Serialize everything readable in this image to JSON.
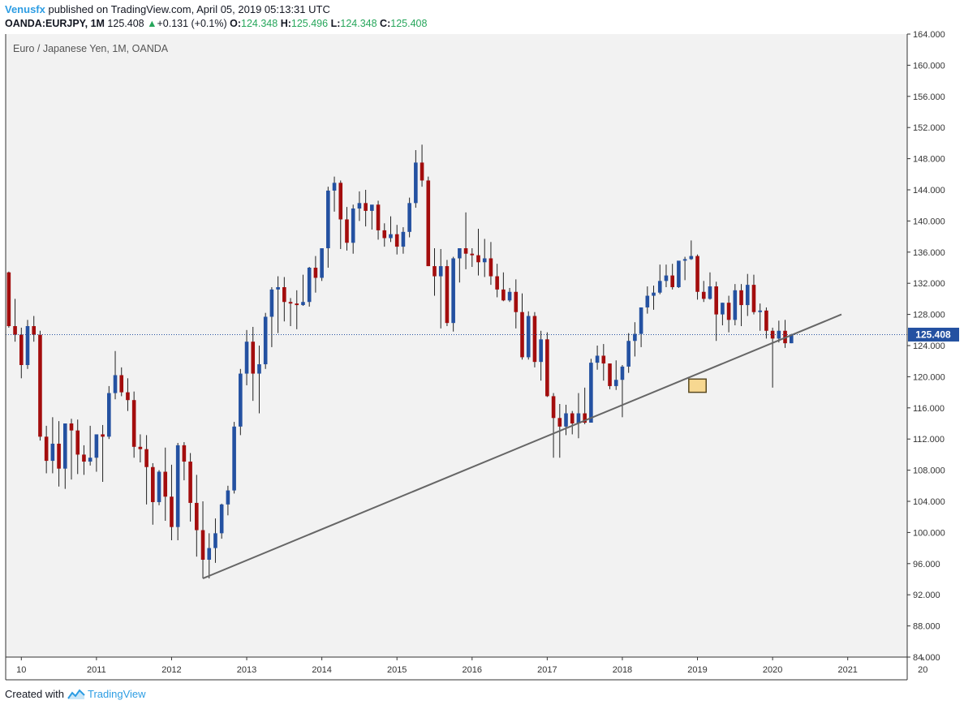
{
  "header": {
    "author": "Venusfx",
    "published_text": " published on TradingView.com, April 05, 2019 05:13:31 UTC"
  },
  "ticker": {
    "symbol": "OANDA:EURJPY, 1M",
    "last": "125.408",
    "change": "+0.131 (+0.1%)",
    "open_label": "O:",
    "open": "124.348",
    "high_label": "H:",
    "high": "125.496",
    "low_label": "L:",
    "low": "124.348",
    "close_label": "C:",
    "close": "125.408"
  },
  "footer": {
    "created_with": "Created with",
    "brand": "TradingView"
  },
  "colors": {
    "up": "#2451a1",
    "down": "#a30d0d",
    "background": "#f2f2f2",
    "trendline": "#666666",
    "price_line": "#2451a1",
    "highlight_fill": "#f7d891",
    "highlight_border": "#5a4a20"
  },
  "chart_data": {
    "type": "candlestick",
    "title": "Euro / Japanese Yen, 1M, OANDA",
    "interval": "1M",
    "ylim": [
      84,
      164
    ],
    "xlim": [
      "2009-11",
      "2021-11"
    ],
    "y_ticks": [
      "164.000",
      "160.000",
      "156.000",
      "152.000",
      "148.000",
      "144.000",
      "140.000",
      "136.000",
      "132.000",
      "128.000",
      "124.000",
      "120.000",
      "116.000",
      "112.000",
      "108.000",
      "104.000",
      "100.000",
      "96.000",
      "92.000",
      "88.000",
      "84.000"
    ],
    "x_ticks": [
      {
        "label": "10",
        "date": "2010-01"
      },
      {
        "label": "2011",
        "date": "2011-01"
      },
      {
        "label": "2012",
        "date": "2012-01"
      },
      {
        "label": "2013",
        "date": "2013-01"
      },
      {
        "label": "2014",
        "date": "2014-01"
      },
      {
        "label": "2015",
        "date": "2015-01"
      },
      {
        "label": "2016",
        "date": "2016-01"
      },
      {
        "label": "2017",
        "date": "2017-01"
      },
      {
        "label": "2018",
        "date": "2018-01"
      },
      {
        "label": "2019",
        "date": "2019-01"
      },
      {
        "label": "2020",
        "date": "2020-01"
      },
      {
        "label": "2021",
        "date": "2021-01"
      },
      {
        "label": "20",
        "date": "2022-01"
      }
    ],
    "last_price": 125.408,
    "last_price_label": "125.408",
    "trendline": [
      {
        "date": "2012-06",
        "price": 94.1
      },
      {
        "date": "2020-12",
        "price": 128.0
      }
    ],
    "highlight": {
      "date_from": "2018-12",
      "date_to": "2019-02",
      "price_low": 118.0,
      "price_high": 119.7
    },
    "candles_start": "2009-11",
    "candles": [
      [
        133.4,
        133.5,
        126.3,
        126.5
      ],
      [
        126.5,
        130.0,
        124.5,
        125.4
      ],
      [
        125.4,
        126.3,
        119.8,
        121.5
      ],
      [
        121.5,
        127.3,
        121.0,
        126.5
      ],
      [
        126.5,
        127.8,
        124.5,
        125.4
      ],
      [
        125.4,
        125.9,
        111.8,
        112.3
      ],
      [
        112.3,
        113.7,
        107.6,
        109.2
      ],
      [
        109.2,
        114.8,
        107.6,
        111.4
      ],
      [
        111.4,
        114.3,
        105.9,
        108.2
      ],
      [
        108.2,
        113.7,
        105.6,
        114.0
      ],
      [
        114.0,
        114.6,
        106.8,
        113.1
      ],
      [
        113.1,
        114.5,
        107.5,
        110.0
      ],
      [
        110.0,
        111.2,
        107.4,
        109.1
      ],
      [
        109.1,
        113.7,
        108.6,
        109.6
      ],
      [
        109.6,
        112.5,
        107.8,
        112.6
      ],
      [
        112.6,
        113.8,
        106.5,
        112.3
      ],
      [
        112.3,
        118.8,
        112.0,
        117.9
      ],
      [
        117.9,
        123.3,
        117.1,
        120.2
      ],
      [
        120.2,
        121.2,
        117.5,
        118.0
      ],
      [
        118.0,
        119.8,
        115.6,
        117.0
      ],
      [
        117.0,
        118.1,
        109.6,
        111.0
      ],
      [
        111.0,
        112.6,
        109.0,
        110.7
      ],
      [
        110.7,
        112.5,
        103.6,
        108.4
      ],
      [
        108.4,
        108.9,
        101.0,
        103.9
      ],
      [
        103.9,
        108.0,
        103.5,
        107.8
      ],
      [
        107.8,
        110.9,
        101.5,
        104.6
      ],
      [
        104.6,
        108.7,
        99.0,
        100.7
      ],
      [
        100.7,
        111.5,
        99.0,
        111.2
      ],
      [
        111.2,
        111.6,
        106.7,
        109.1
      ],
      [
        109.1,
        110.2,
        101.4,
        103.8
      ],
      [
        103.8,
        107.4,
        96.9,
        100.3
      ],
      [
        100.3,
        104.0,
        94.1,
        96.5
      ],
      [
        96.5,
        99.9,
        94.1,
        98.0
      ],
      [
        98.0,
        101.8,
        96.1,
        99.9
      ],
      [
        99.9,
        103.7,
        99.2,
        103.6
      ],
      [
        103.6,
        106.0,
        102.2,
        105.4
      ],
      [
        105.4,
        114.2,
        105.0,
        113.6
      ],
      [
        113.6,
        121.0,
        112.5,
        120.4
      ],
      [
        120.4,
        126.0,
        118.9,
        124.5
      ],
      [
        124.5,
        126.4,
        116.9,
        120.4
      ],
      [
        120.4,
        124.0,
        115.3,
        121.6
      ],
      [
        121.6,
        128.2,
        121.0,
        127.7
      ],
      [
        127.7,
        131.5,
        123.8,
        131.2
      ],
      [
        131.2,
        132.9,
        125.6,
        131.5
      ],
      [
        131.5,
        132.8,
        127.1,
        129.6
      ],
      [
        129.6,
        130.1,
        126.5,
        129.4
      ],
      [
        129.4,
        131.1,
        126.1,
        129.2
      ],
      [
        129.2,
        133.1,
        129.1,
        129.6
      ],
      [
        129.6,
        134.1,
        129.0,
        134.0
      ],
      [
        134.0,
        135.5,
        130.8,
        132.7
      ],
      [
        132.7,
        136.3,
        132.3,
        136.5
      ],
      [
        136.5,
        144.4,
        134.0,
        143.9
      ],
      [
        143.9,
        145.7,
        141.2,
        144.9
      ],
      [
        144.9,
        145.2,
        136.4,
        140.2
      ],
      [
        140.2,
        141.8,
        136.2,
        137.2
      ],
      [
        137.2,
        142.1,
        135.8,
        141.6
      ],
      [
        141.6,
        143.8,
        140.0,
        142.3
      ],
      [
        142.3,
        144.0,
        139.3,
        141.3
      ],
      [
        141.3,
        141.6,
        138.9,
        142.1
      ],
      [
        142.1,
        142.6,
        137.6,
        138.8
      ],
      [
        138.8,
        139.7,
        136.7,
        137.8
      ],
      [
        137.8,
        140.6,
        137.3,
        138.3
      ],
      [
        138.3,
        139.5,
        135.7,
        136.7
      ],
      [
        136.7,
        139.2,
        135.8,
        138.6
      ],
      [
        138.6,
        143.0,
        137.9,
        142.3
      ],
      [
        142.3,
        149.1,
        141.7,
        147.5
      ],
      [
        147.5,
        149.8,
        144.4,
        145.2
      ],
      [
        145.2,
        145.7,
        134.2,
        134.2
      ],
      [
        134.2,
        136.5,
        130.4,
        132.9
      ],
      [
        132.9,
        136.4,
        126.2,
        134.2
      ],
      [
        134.2,
        135.0,
        126.5,
        126.9
      ],
      [
        126.9,
        135.4,
        125.8,
        135.2
      ],
      [
        135.2,
        136.2,
        132.1,
        136.5
      ],
      [
        136.5,
        141.1,
        133.8,
        135.8
      ],
      [
        135.8,
        136.5,
        134.1,
        135.6
      ],
      [
        135.6,
        139.0,
        133.0,
        134.7
      ],
      [
        134.7,
        137.7,
        132.8,
        135.2
      ],
      [
        135.2,
        137.3,
        131.8,
        132.9
      ],
      [
        132.9,
        134.5,
        130.2,
        131.2
      ],
      [
        131.2,
        133.4,
        129.7,
        129.8
      ],
      [
        129.8,
        131.4,
        129.6,
        130.9
      ],
      [
        130.9,
        132.5,
        126.2,
        128.3
      ],
      [
        128.3,
        130.7,
        122.2,
        122.5
      ],
      [
        122.5,
        128.4,
        122.2,
        127.8
      ],
      [
        127.8,
        128.3,
        121.2,
        121.9
      ],
      [
        121.9,
        125.9,
        119.5,
        124.8
      ],
      [
        124.8,
        125.7,
        117.4,
        117.5
      ],
      [
        117.5,
        117.9,
        109.6,
        114.7
      ],
      [
        114.7,
        116.5,
        109.6,
        113.6
      ],
      [
        113.6,
        116.4,
        112.5,
        115.3
      ],
      [
        115.3,
        115.6,
        112.6,
        114.0
      ],
      [
        114.0,
        117.9,
        112.1,
        115.3
      ],
      [
        115.3,
        118.6,
        113.9,
        114.1
      ],
      [
        114.1,
        122.3,
        114.3,
        121.8
      ],
      [
        121.8,
        124.0,
        120.9,
        122.7
      ],
      [
        122.7,
        124.2,
        119.5,
        121.7
      ],
      [
        121.7,
        121.7,
        118.4,
        118.8
      ],
      [
        118.8,
        122.1,
        118.3,
        119.6
      ],
      [
        119.6,
        121.5,
        114.8,
        121.3
      ],
      [
        121.3,
        125.6,
        120.5,
        124.6
      ],
      [
        124.6,
        127.0,
        122.6,
        125.5
      ],
      [
        125.5,
        128.4,
        123.8,
        128.9
      ],
      [
        128.9,
        131.6,
        128.1,
        130.4
      ],
      [
        130.4,
        131.7,
        128.6,
        130.8
      ],
      [
        130.8,
        134.4,
        130.6,
        132.3
      ],
      [
        132.3,
        134.4,
        131.5,
        133.0
      ],
      [
        133.0,
        134.5,
        131.2,
        131.5
      ],
      [
        131.5,
        134.4,
        131.4,
        134.9
      ],
      [
        134.9,
        135.4,
        132.4,
        135.1
      ],
      [
        135.1,
        137.5,
        135.0,
        135.5
      ],
      [
        135.5,
        135.7,
        129.9,
        130.9
      ],
      [
        130.9,
        132.3,
        129.6,
        130.0
      ],
      [
        130.0,
        133.4,
        129.9,
        131.6
      ],
      [
        131.6,
        132.2,
        124.6,
        128.0
      ],
      [
        128.0,
        129.5,
        126.6,
        129.5
      ],
      [
        129.5,
        130.4,
        125.7,
        127.3
      ],
      [
        127.3,
        131.9,
        126.6,
        131.1
      ],
      [
        131.1,
        131.9,
        126.5,
        129.2
      ],
      [
        129.2,
        133.2,
        127.8,
        131.8
      ],
      [
        131.8,
        133.1,
        128.0,
        128.3
      ],
      [
        128.3,
        129.4,
        125.9,
        128.5
      ],
      [
        128.5,
        128.9,
        124.9,
        125.9
      ],
      [
        125.9,
        126.3,
        118.6,
        124.9
      ],
      [
        124.9,
        127.2,
        124.4,
        125.9
      ],
      [
        125.9,
        127.3,
        123.7,
        124.3
      ],
      [
        124.3,
        125.5,
        124.3,
        125.4
      ]
    ]
  }
}
